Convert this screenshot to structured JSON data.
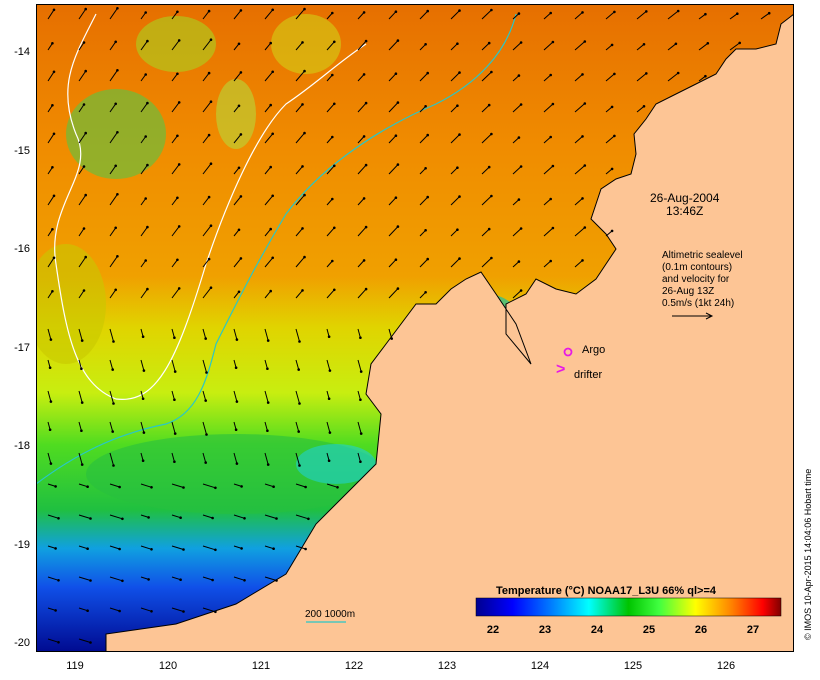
{
  "map": {
    "colors": {
      "land": "#fdc595",
      "coast": "#000000",
      "contour_white": "#ffffff",
      "contour_cyan": "#29c7c7",
      "argo": "#e619e6",
      "drifter": "#e619e6"
    },
    "lat_labels": [
      "-14",
      "-15",
      "-16",
      "-17",
      "-18",
      "-19",
      "-20"
    ],
    "lon_labels": [
      "119",
      "120",
      "121",
      "122",
      "123",
      "124",
      "125",
      "126"
    ],
    "date_line1": "26-Aug-2004",
    "date_line2": "13:46Z",
    "altimetry": {
      "line1": "Altimetric sealevel",
      "line2": "(0.1m contours)",
      "line3": "and velocity for",
      "line4": "26-Aug 13Z",
      "line5": "0.5m/s (1kt 24h)"
    },
    "argo_label": "Argo",
    "drifter_label": "drifter",
    "drifter_glyph": ">",
    "scale_label": "200  1000m",
    "credit": "© IMOS 10-Apr-2015 14:04:06 Hobart time"
  },
  "colorbar": {
    "title": "Temperature (°C) NOAA17_L3U 66% ql>=4",
    "ticks": [
      "22",
      "23",
      "24",
      "25",
      "26",
      "27"
    ],
    "stops": [
      "#00008f",
      "#0000ff",
      "#0080ff",
      "#00ffff",
      "#00c400",
      "#40ff40",
      "#ffff00",
      "#ff8000",
      "#ff0000",
      "#800000"
    ]
  }
}
